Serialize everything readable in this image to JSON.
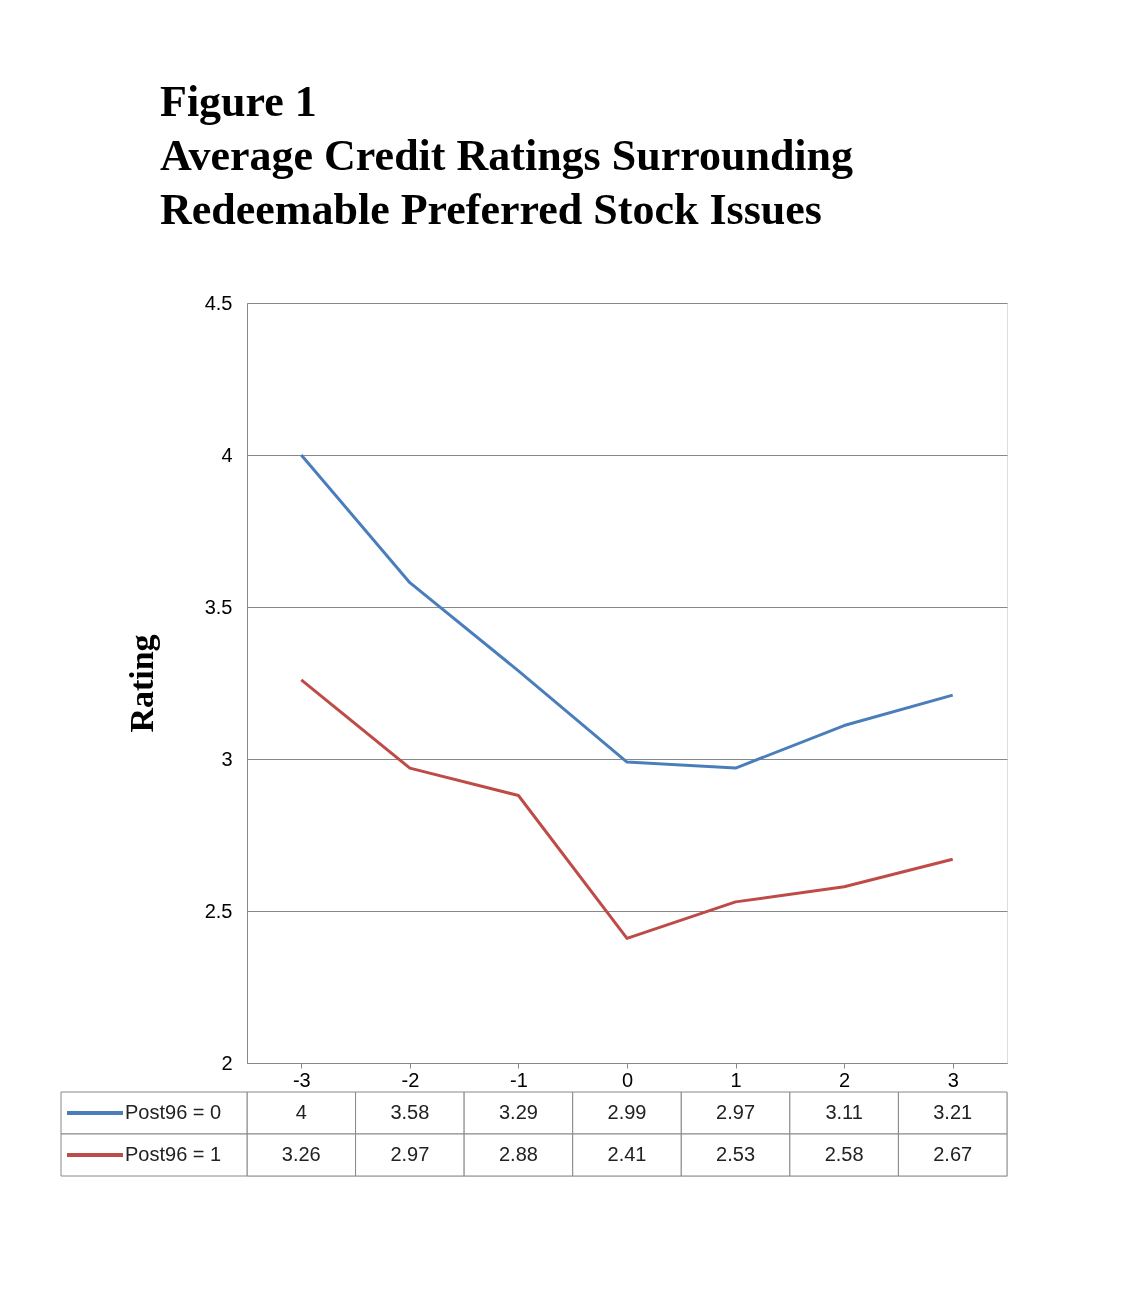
{
  "chart_data": {
    "type": "line",
    "title": "Figure 1\nAverage Credit Ratings Surrounding\nRedeemable Preferred Stock Issues",
    "ylabel": "Rating",
    "categories": [
      "-3",
      "-2",
      "-1",
      "0",
      "1",
      "2",
      "3"
    ],
    "series": [
      {
        "name": "Post96 = 0",
        "color": "#4a7ebb",
        "values": [
          4,
          3.58,
          3.29,
          2.99,
          2.97,
          3.11,
          3.21
        ]
      },
      {
        "name": "Post96 = 1",
        "color": "#be4b48",
        "values": [
          3.26,
          2.97,
          2.88,
          2.41,
          2.53,
          2.58,
          2.67
        ]
      }
    ],
    "ylim": [
      2,
      4.5
    ],
    "yticks": [
      2,
      2.5,
      3,
      3.5,
      4,
      4.5
    ],
    "grid": "y",
    "legend": "bottom",
    "data_labels": true,
    "marker": "none",
    "line_style": "solid"
  }
}
